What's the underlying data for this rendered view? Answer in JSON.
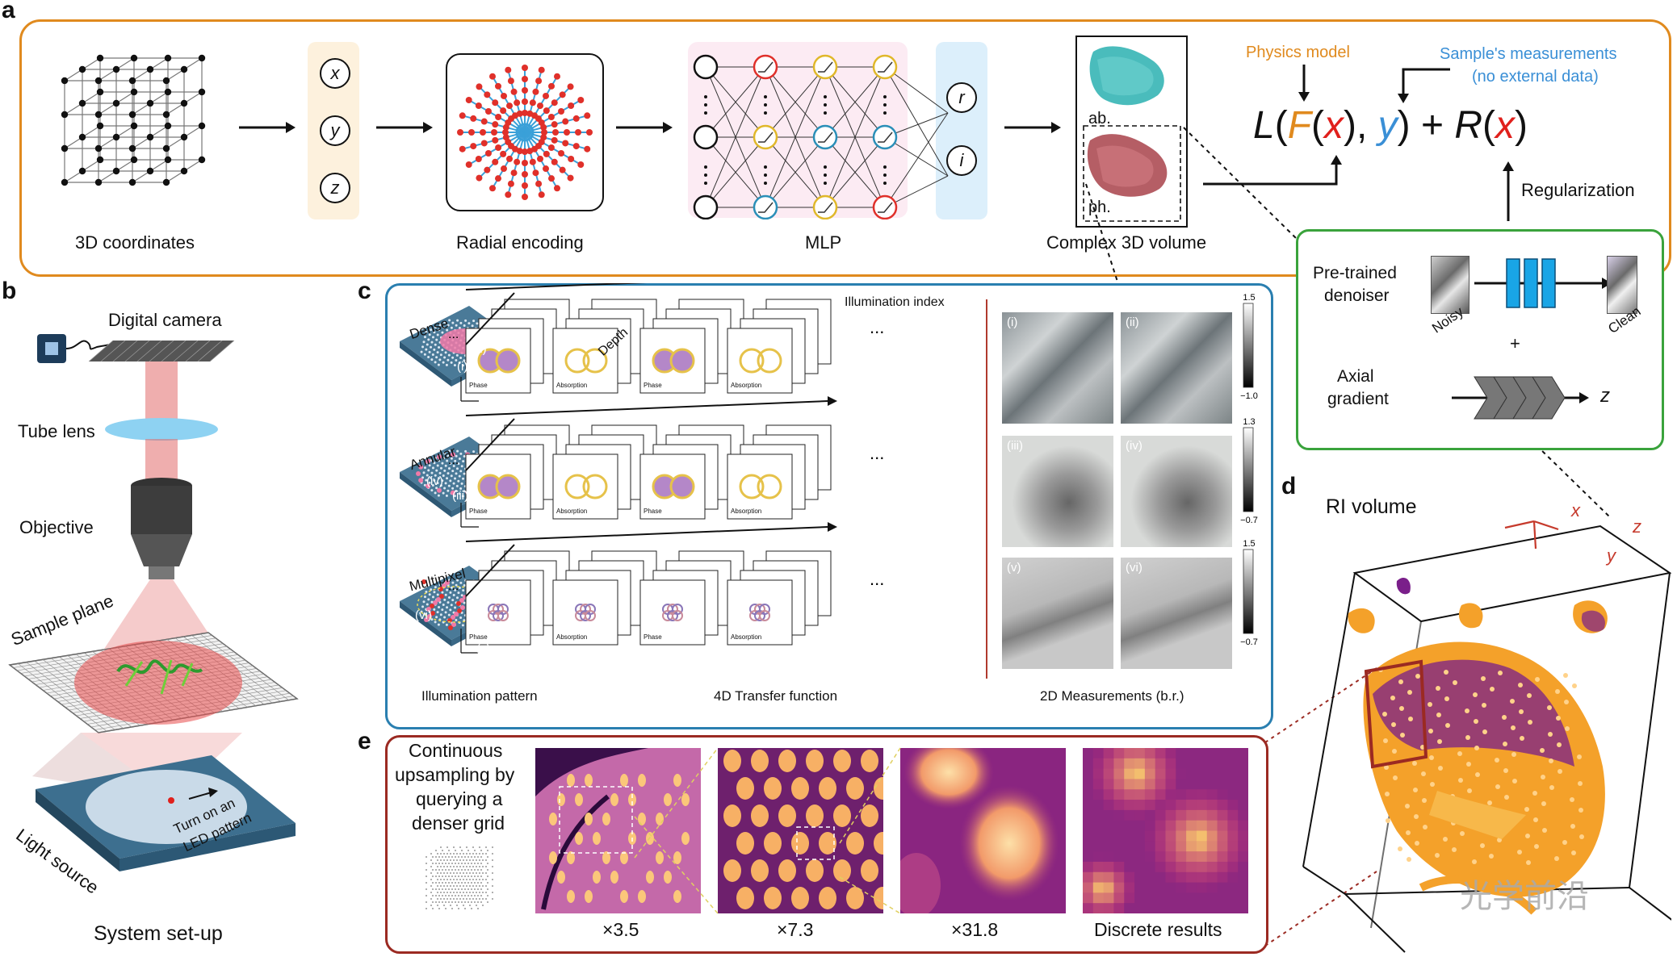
{
  "panel_labels": {
    "a": "a",
    "b": "b",
    "c": "c",
    "d": "d",
    "e": "e"
  },
  "panel_a": {
    "coords_label": "3D coordinates",
    "coord_vars": [
      "x",
      "y",
      "z"
    ],
    "encoding_label": "Radial encoding",
    "mlp_label": "MLP",
    "outputs": [
      "r",
      "i"
    ],
    "volume_label": "Complex 3D volume",
    "volume_parts": {
      "ab": "ab.",
      "ph": "ph."
    },
    "physics_model": "Physics model",
    "measurements_line1": "Sample's measurements",
    "measurements_line2": "(no external data)",
    "loss": {
      "L": "L",
      "F": "F",
      "x": "x",
      "y": "y",
      "R": "R",
      "plus": "+",
      "lp": "(",
      "rp": ")",
      "comma": ","
    },
    "regularization": "Regularization",
    "colors": {
      "orange": "#e08a1e",
      "blue": "#3a8fd6",
      "red": "#e0201c"
    }
  },
  "regularizer_panel": {
    "denoiser_line1": "Pre-trained",
    "denoiser_line2": "denoiser",
    "noisy": "Noisy",
    "clean": "Clean",
    "plus": "+",
    "axial_line1": "Axial",
    "axial_line2": "gradient",
    "z": "z"
  },
  "panel_b": {
    "digital_camera": "Digital camera",
    "tube_lens": "Tube lens",
    "objective": "Objective",
    "sample_plane": "Sample plane",
    "light_source": "Light source",
    "led_line1": "Turn on an",
    "led_line2": "LED pattern",
    "caption": "System set-up"
  },
  "panel_c": {
    "patterns": [
      {
        "name": "Dense",
        "marks": [
          "(ii)",
          "(i)"
        ]
      },
      {
        "name": "Annular",
        "marks": [
          "(iv)",
          "(iii)"
        ]
      },
      {
        "name": "Multipixel",
        "marks": [
          "(vi)",
          "(v)"
        ]
      }
    ],
    "illumination_index": "Illumination index",
    "depth": "Depth",
    "tf_labels": [
      "Phase",
      "Absorption",
      "Phase",
      "Absorption"
    ],
    "ellipsis": "...",
    "col_captions": [
      "Illumination pattern",
      "4D Transfer function",
      "2D Measurements (b.r.)"
    ],
    "measurement_marks": [
      "(i)",
      "(ii)",
      "(iii)",
      "(iv)",
      "(v)",
      "(vi)"
    ],
    "colorbars": [
      [
        "1.5",
        "−1.0"
      ],
      [
        "1.3",
        "−0.7"
      ],
      [
        "1.5",
        "−0.7"
      ]
    ]
  },
  "panel_d": {
    "title": "RI volume",
    "axes": {
      "x": "x",
      "y": "y",
      "z": "z"
    }
  },
  "panel_e": {
    "text_lines": [
      "Continuous",
      "upsampling by",
      "querying a",
      "denser grid"
    ],
    "captions": [
      "×3.5",
      "×7.3",
      "×31.8",
      "Discrete results"
    ]
  },
  "watermark": "光学前沿"
}
